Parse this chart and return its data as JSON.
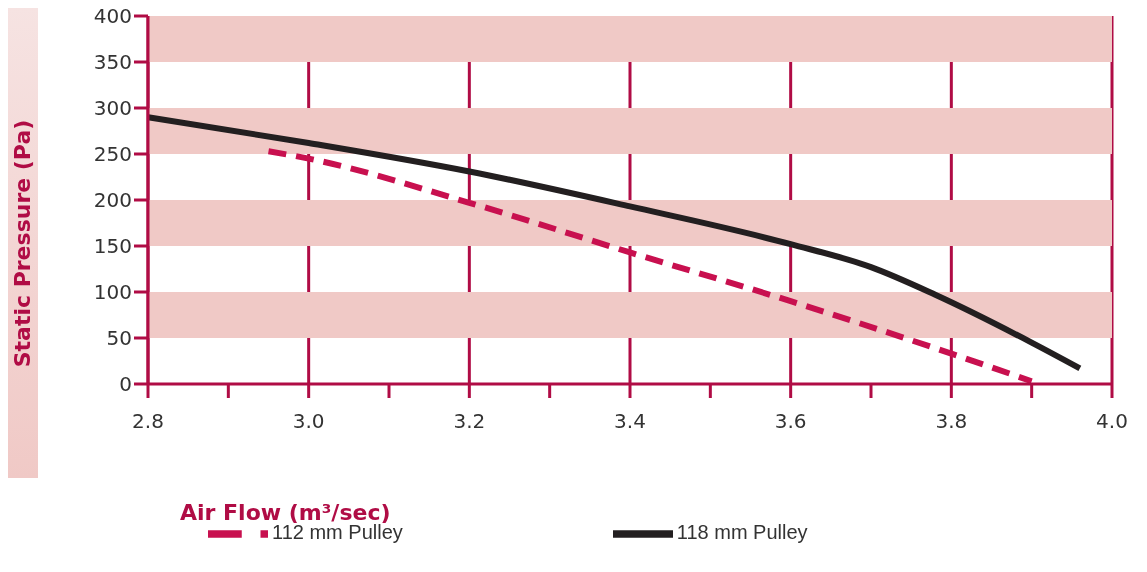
{
  "chart_data": {
    "type": "line",
    "xlabel": "Air Flow (m³/sec)",
    "ylabel": "Static Pressure (Pa)",
    "xlim": [
      2.8,
      4.0
    ],
    "xticks": [
      2.8,
      {
        "value": 2.9,
        "label": null
      },
      {
        "value": 3.0,
        "label": "3.0"
      },
      {
        "value": 3.1,
        "label": null
      },
      3.2,
      {
        "value": 3.3,
        "label": null
      },
      3.4,
      {
        "value": 3.5,
        "label": null
      },
      3.6,
      {
        "value": 3.7,
        "label": null
      },
      3.8,
      {
        "value": 3.9,
        "label": null
      },
      {
        "value": 4.0,
        "label": "4.0"
      }
    ],
    "ylim": [
      0,
      400
    ],
    "yticks": [
      0,
      50,
      100,
      150,
      200,
      250,
      300,
      350,
      400
    ],
    "grid": "x",
    "legend": "bottom",
    "marker": "none",
    "bands": [
      {
        "axis": "y",
        "from": 50,
        "to": 100,
        "color": "#f0c9c6"
      },
      {
        "axis": "y",
        "from": 150,
        "to": 200,
        "color": "#f0c9c6"
      },
      {
        "axis": "y",
        "from": 250,
        "to": 300,
        "color": "#f0c9c6"
      },
      {
        "axis": "y",
        "from": 350,
        "to": 400,
        "color": "#f0c9c6"
      }
    ],
    "series": [
      {
        "name": "118 mm Pulley",
        "color": "#231f20",
        "line_style": "solid",
        "x": [
          2.8,
          3.0,
          3.2,
          3.4,
          3.6,
          3.7,
          3.78,
          3.9,
          3.96
        ],
        "values": [
          290,
          262,
          231,
          193,
          152,
          127,
          97,
          45,
          17
        ]
      },
      {
        "name": "112 mm Pulley",
        "color": "#c8104f",
        "line_style": "dashed",
        "x": [
          2.95,
          3.0,
          3.2,
          3.4,
          3.6,
          3.8,
          3.9
        ],
        "values": [
          253,
          245,
          197,
          143,
          90,
          33,
          3
        ]
      }
    ]
  }
}
